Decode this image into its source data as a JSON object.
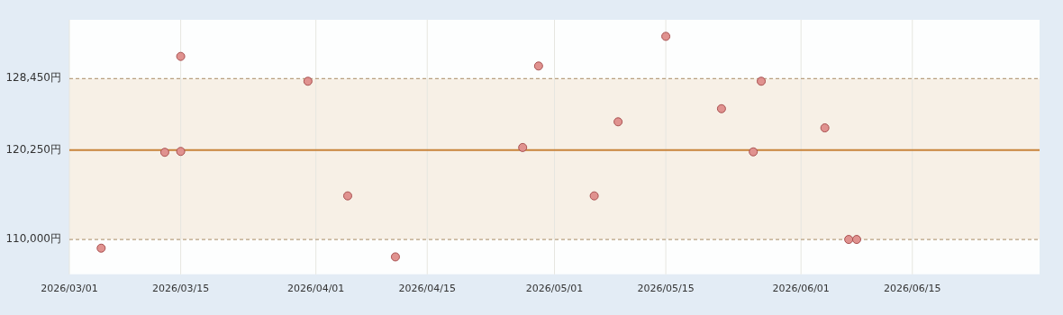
{
  "chart_data": {
    "type": "scatter",
    "x": [
      "2026-03-05",
      "2026-03-13",
      "2026-03-15",
      "2026-03-15",
      "2026-03-31",
      "2026-04-05",
      "2026-04-11",
      "2026-04-27",
      "2026-04-29",
      "2026-05-06",
      "2026-05-09",
      "2026-05-15",
      "2026-05-22",
      "2026-05-26",
      "2026-05-27",
      "2026-06-04",
      "2026-06-07",
      "2026-06-08"
    ],
    "values": [
      109000,
      120000,
      120100,
      131000,
      128150,
      115000,
      108000,
      120550,
      129900,
      115000,
      123500,
      133300,
      125000,
      120050,
      128150,
      122800,
      110000,
      110000
    ],
    "color": "#e0928f",
    "marker": "circle",
    "grid": "x",
    "legend": false,
    "xlim": [
      "2026-03-01",
      "2026-07-01"
    ],
    "xticks": [
      {
        "value": "2026-03-01",
        "label": "2026/03/01"
      },
      {
        "value": "2026-03-15",
        "label": "2026/03/15"
      },
      {
        "value": "2026-04-01",
        "label": "2026/04/01"
      },
      {
        "value": "2026-04-15",
        "label": "2026/04/15"
      },
      {
        "value": "2026-05-01",
        "label": "2026/05/01"
      },
      {
        "value": "2026-05-15",
        "label": "2026/05/15"
      },
      {
        "value": "2026-06-01",
        "label": "2026/06/01"
      },
      {
        "value": "2026-06-15",
        "label": "2026/06/15"
      }
    ],
    "ylim": [
      106000,
      135200
    ],
    "yticks": [
      {
        "value": 110000,
        "label": "110,000円"
      },
      {
        "value": 120250,
        "label": "120,250円"
      },
      {
        "value": 128450,
        "label": "128,450円"
      }
    ],
    "bands": [
      {
        "axis": "y",
        "from": 110000,
        "to": 128450,
        "color": "#f7f0e6"
      }
    ],
    "ref_lines": [
      {
        "axis": "y",
        "value": 128450,
        "color": "#b8a080",
        "line_style": "dashed"
      },
      {
        "axis": "y",
        "value": 120250,
        "color": "#c8833a",
        "line_style": "solid"
      },
      {
        "axis": "y",
        "value": 110000,
        "color": "#b8a080",
        "line_style": "dashed"
      }
    ]
  }
}
